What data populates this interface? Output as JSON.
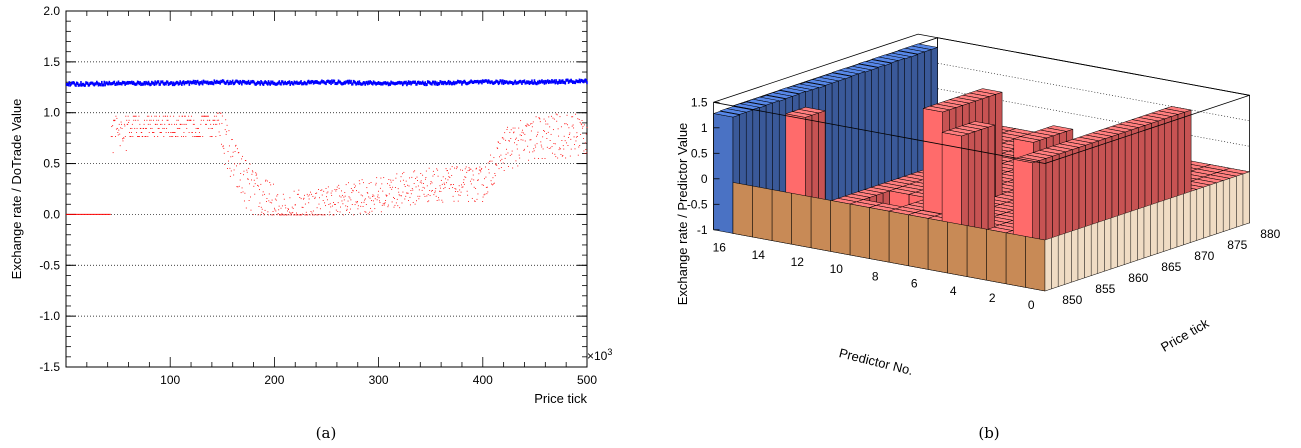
{
  "chart_data": [
    {
      "type": "scatter",
      "panel_caption": "(a)",
      "xlabel": "Price tick",
      "ylabel": "Exchange rate / DoTrade Value",
      "x_multiplier": "×10",
      "x_multiplier_exp": "3",
      "xlim": [
        0,
        500
      ],
      "ylim": [
        -1.5,
        2.0
      ],
      "x_tick_labels": [
        "100",
        "200",
        "300",
        "400",
        "500"
      ],
      "y_tick_labels": [
        "-1.5",
        "-1.0",
        "-0.5",
        "0.0",
        "0.5",
        "1.0",
        "1.5",
        "2.0"
      ],
      "grid": "horizontal dotted",
      "series": [
        {
          "color": "#0000ff",
          "x": [
            0,
            50,
            100,
            150,
            200,
            250,
            300,
            350,
            400,
            450,
            500
          ],
          "values": [
            1.28,
            1.29,
            1.29,
            1.3,
            1.29,
            1.3,
            1.29,
            1.29,
            1.3,
            1.3,
            1.31
          ]
        },
        {
          "color": "#ff0000",
          "x": [
            0,
            43,
            60,
            100,
            145,
            160,
            180,
            200,
            240,
            300,
            350,
            400,
            420,
            450,
            500
          ],
          "values": [
            0.0,
            0.0,
            0.97,
            0.97,
            0.95,
            0.5,
            0.2,
            0.05,
            0.1,
            0.2,
            0.3,
            0.3,
            0.65,
            0.75,
            0.8
          ]
        }
      ]
    },
    {
      "type": "bar3d",
      "panel_caption": "(b)",
      "xlabel": "Predictor No.",
      "ylabel": "Price tick",
      "zlabel": "Exchange rate / Predictor Value",
      "z_tick_labels": [
        "-1",
        "-0.5",
        "0",
        "0.5",
        "1",
        "1.5"
      ],
      "zlim": [
        -1,
        1.5
      ],
      "predictor_tick_labels": [
        "0",
        "2",
        "4",
        "6",
        "8",
        "10",
        "12",
        "14",
        "16"
      ],
      "price_tick_labels": [
        "850",
        "855",
        "860",
        "865",
        "870",
        "875",
        "880"
      ],
      "colors": {
        "exchange_rate": "#4a72c4",
        "predictor": "#ff6b6b",
        "floor": "#c88a56"
      },
      "exchange_rate_values": [
        1.28,
        1.29,
        1.29,
        1.3,
        1.29,
        1.3,
        1.3,
        1.29,
        1.3,
        1.3,
        1.31,
        1.3,
        1.3,
        1.29,
        1.3,
        1.3,
        1.3,
        1.3,
        1.31,
        1.31,
        1.3,
        1.3,
        1.31,
        1.3,
        1.31,
        1.31,
        1.3,
        1.3,
        1.31,
        1.31,
        1.31
      ],
      "active_predictors": [
        {
          "predictor": 3,
          "price_from": 857,
          "price_to": 880,
          "value": 1
        },
        {
          "predictor": 5,
          "price_from": 863,
          "price_to": 868,
          "value": 1
        },
        {
          "predictor": 8,
          "price_from": 861,
          "price_to": 865,
          "value": 1
        },
        {
          "predictor": 11,
          "price_from": 867,
          "price_to": 873,
          "value": 1
        },
        {
          "predictor": 11,
          "price_from": 874,
          "price_to": 875,
          "value": 1
        },
        {
          "predictor": 15,
          "price_from": 858,
          "price_to": 860,
          "value": 1
        }
      ]
    }
  ]
}
